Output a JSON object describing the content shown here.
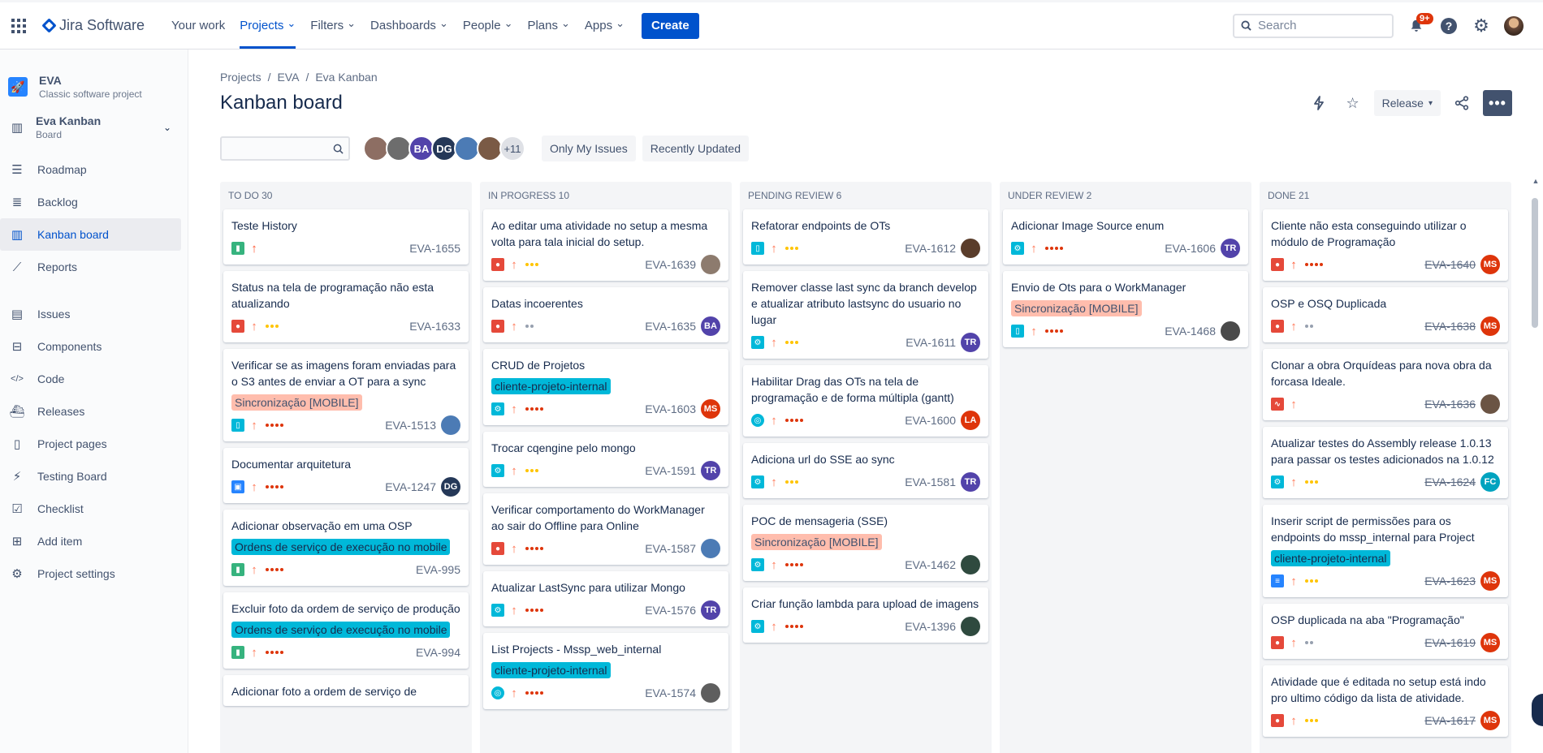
{
  "topnav": {
    "logo": "Jira Software",
    "items": [
      {
        "label": "Your work",
        "chev": false,
        "active": false
      },
      {
        "label": "Projects",
        "chev": true,
        "active": true
      },
      {
        "label": "Filters",
        "chev": true,
        "active": false
      },
      {
        "label": "Dashboards",
        "chev": true,
        "active": false
      },
      {
        "label": "People",
        "chev": true,
        "active": false
      },
      {
        "label": "Plans",
        "chev": true,
        "active": false
      },
      {
        "label": "Apps",
        "chev": true,
        "active": false
      }
    ],
    "create": "Create",
    "search_placeholder": "Search",
    "notif_badge": "9+"
  },
  "sidebar": {
    "project_name": "EVA",
    "project_type": "Classic software project",
    "board_name": "Eva Kanban",
    "board_type": "Board",
    "items": [
      {
        "label": "Roadmap",
        "icon": "roadmap-icon",
        "glyph": "☰",
        "active": false,
        "sep_before": false
      },
      {
        "label": "Backlog",
        "icon": "backlog-icon",
        "glyph": "≣",
        "active": false,
        "sep_before": false
      },
      {
        "label": "Kanban board",
        "icon": "board-icon",
        "glyph": "▥",
        "active": true,
        "sep_before": false
      },
      {
        "label": "Reports",
        "icon": "reports-icon",
        "glyph": "⟋",
        "active": false,
        "sep_before": false
      },
      {
        "label": "Issues",
        "icon": "issues-icon",
        "glyph": "▤",
        "active": false,
        "sep_before": true
      },
      {
        "label": "Components",
        "icon": "components-icon",
        "glyph": "⊟",
        "active": false,
        "sep_before": false
      },
      {
        "label": "Code",
        "icon": "code-icon",
        "glyph": "</>",
        "active": false,
        "sep_before": false
      },
      {
        "label": "Releases",
        "icon": "releases-icon",
        "glyph": "⛴",
        "active": false,
        "sep_before": false
      },
      {
        "label": "Project pages",
        "icon": "pages-icon",
        "glyph": "▯",
        "active": false,
        "sep_before": false
      },
      {
        "label": "Testing Board",
        "icon": "lightning-icon",
        "glyph": "⚡",
        "active": false,
        "sep_before": false
      },
      {
        "label": "Checklist",
        "icon": "checklist-icon",
        "glyph": "☑",
        "active": false,
        "sep_before": false
      },
      {
        "label": "Add item",
        "icon": "add-item-icon",
        "glyph": "⊞",
        "active": false,
        "sep_before": false
      },
      {
        "label": "Project settings",
        "icon": "settings-icon",
        "glyph": "⚙",
        "active": false,
        "sep_before": false
      }
    ]
  },
  "main": {
    "breadcrumbs": [
      "Projects",
      "EVA",
      "Eva Kanban"
    ],
    "title": "Kanban board",
    "release": "Release",
    "filters": {
      "only_my_issues": "Only My Issues",
      "recently_updated": "Recently Updated",
      "more_users": "+11",
      "avatars": [
        {
          "initials": "",
          "color": "#8d6e63"
        },
        {
          "initials": "",
          "color": "#6d6d6d"
        },
        {
          "initials": "BA",
          "color": "#5243aa"
        },
        {
          "initials": "DG",
          "color": "#253858"
        },
        {
          "initials": "",
          "color": "#4c7bb5"
        },
        {
          "initials": "",
          "color": "#7a5a45"
        }
      ]
    }
  },
  "columns": [
    {
      "name": "TO DO 30",
      "cards": [
        {
          "title": "Teste History",
          "label": "",
          "label_kind": "",
          "type": "story",
          "prio": "high",
          "dots": 0,
          "key": "EVA-1655",
          "avatar": "",
          "avatar_color": "",
          "done": false
        },
        {
          "title": "Status na tela de programação não esta atualizando",
          "label": "",
          "label_kind": "",
          "type": "bug",
          "prio": "med",
          "dots": 3,
          "dot_color": "#ffc400",
          "key": "EVA-1633",
          "avatar": "",
          "avatar_color": "",
          "done": false
        },
        {
          "title": "Verificar se as imagens foram enviadas para o S3 antes de enviar a OT para a sync",
          "label": "Sincronização [MOBILE]",
          "label_kind": "sync",
          "type": "mobile",
          "prio": "med",
          "dots": 4,
          "dot_color": "#de350b",
          "key": "EVA-1513",
          "avatar": " ",
          "avatar_color": "#4c7bb5",
          "done": false
        },
        {
          "title": "Documentar arquitetura",
          "label": "",
          "label_kind": "",
          "type": "doc",
          "prio": "med",
          "dots": 4,
          "dot_color": "#de350b",
          "key": "EVA-1247",
          "avatar": "DG",
          "avatar_color": "#253858",
          "done": false
        },
        {
          "title": "Adicionar observação em uma OSP",
          "label": "Ordens de serviço de execução no mobile",
          "label_kind": "ordens",
          "type": "story",
          "prio": "med",
          "dots": 4,
          "dot_color": "#de350b",
          "key": "EVA-995",
          "avatar": "",
          "avatar_color": "",
          "done": false
        },
        {
          "title": "Excluir foto da ordem de serviço de produção",
          "label": "Ordens de serviço de execução no mobile",
          "label_kind": "ordens",
          "type": "story",
          "prio": "med",
          "dots": 4,
          "dot_color": "#de350b",
          "key": "EVA-994",
          "avatar": "",
          "avatar_color": "",
          "done": false
        },
        {
          "title": "Adicionar foto a ordem de serviço de",
          "label": "",
          "label_kind": "",
          "type": "story",
          "prio": "med",
          "dots": 0,
          "key": "",
          "avatar": "",
          "avatar_color": "",
          "done": false
        }
      ]
    },
    {
      "name": "IN PROGRESS 10",
      "cards": [
        {
          "title": "Ao editar uma atividade no setup a mesma volta para tala inicial do setup.",
          "label": "",
          "label_kind": "",
          "type": "bug",
          "prio": "med",
          "dots": 3,
          "dot_color": "#ffc400",
          "key": "EVA-1639",
          "avatar": " ",
          "avatar_color": "#8d7b6e",
          "done": false
        },
        {
          "title": "Datas incoerentes",
          "label": "",
          "label_kind": "",
          "type": "bug",
          "prio": "med",
          "dots": 2,
          "dot_color": "#97a0af",
          "key": "EVA-1635",
          "avatar": "BA",
          "avatar_color": "#5243aa",
          "done": false
        },
        {
          "title": "CRUD de Projetos",
          "label": "cliente-projeto-internal",
          "label_kind": "cliente",
          "type": "tech",
          "prio": "med",
          "dots": 4,
          "dot_color": "#de350b",
          "key": "EVA-1603",
          "avatar": "MS",
          "avatar_color": "#de350b",
          "done": false
        },
        {
          "title": "Trocar cqengine pelo mongo",
          "label": "",
          "label_kind": "",
          "type": "tech",
          "prio": "med",
          "dots": 3,
          "dot_color": "#ffc400",
          "key": "EVA-1591",
          "avatar": "TR",
          "avatar_color": "#5243aa",
          "done": false
        },
        {
          "title": "Verificar comportamento do WorkManager ao sair do Offline para Online",
          "label": "",
          "label_kind": "",
          "type": "bug",
          "prio": "med",
          "dots": 4,
          "dot_color": "#de350b",
          "key": "EVA-1587",
          "avatar": " ",
          "avatar_color": "#4c7bb5",
          "done": false
        },
        {
          "title": "Atualizar LastSync para utilizar Mongo",
          "label": "",
          "label_kind": "",
          "type": "tech",
          "prio": "med",
          "dots": 4,
          "dot_color": "#de350b",
          "key": "EVA-1576",
          "avatar": "TR",
          "avatar_color": "#5243aa",
          "done": false
        },
        {
          "title": "List Projects - Mssp_web_internal",
          "label": "cliente-projeto-internal",
          "label_kind": "cliente",
          "type": "web",
          "prio": "med",
          "dots": 4,
          "dot_color": "#de350b",
          "key": "EVA-1574",
          "avatar": " ",
          "avatar_color": "#5e5e5e",
          "done": false
        }
      ]
    },
    {
      "name": "PENDING REVIEW 6",
      "cards": [
        {
          "title": "Refatorar endpoints de OTs",
          "label": "",
          "label_kind": "",
          "type": "mobile",
          "prio": "med",
          "dots": 3,
          "dot_color": "#ffc400",
          "key": "EVA-1612",
          "avatar": " ",
          "avatar_color": "#5a3d2b",
          "done": false
        },
        {
          "title": "Remover classe last sync da branch develop e atualizar atributo lastsync do usuario no lugar",
          "label": "",
          "label_kind": "",
          "type": "tech",
          "prio": "med",
          "dots": 3,
          "dot_color": "#ffc400",
          "key": "EVA-1611",
          "avatar": "TR",
          "avatar_color": "#5243aa",
          "done": false
        },
        {
          "title": "Habilitar Drag das OTs na tela de programação e de forma múltipla (gantt)",
          "label": "",
          "label_kind": "",
          "type": "web",
          "prio": "med",
          "dots": 4,
          "dot_color": "#de350b",
          "key": "EVA-1600",
          "avatar": "LA",
          "avatar_color": "#de350b",
          "done": false
        },
        {
          "title": "Adiciona url do SSE ao sync",
          "label": "",
          "label_kind": "",
          "type": "tech",
          "prio": "med",
          "dots": 3,
          "dot_color": "#ffc400",
          "key": "EVA-1581",
          "avatar": "TR",
          "avatar_color": "#5243aa",
          "done": false
        },
        {
          "title": "POC de mensageria (SSE)",
          "label": "Sincronização [MOBILE]",
          "label_kind": "sync",
          "type": "tech",
          "prio": "med",
          "dots": 4,
          "dot_color": "#de350b",
          "key": "EVA-1462",
          "avatar": " ",
          "avatar_color": "#2f4a3f",
          "done": false
        },
        {
          "title": "Criar função lambda para upload de imagens",
          "label": "",
          "label_kind": "",
          "type": "tech",
          "prio": "med",
          "dots": 4,
          "dot_color": "#de350b",
          "key": "EVA-1396",
          "avatar": " ",
          "avatar_color": "#2f4a3f",
          "done": false
        }
      ]
    },
    {
      "name": "UNDER REVIEW 2",
      "cards": [
        {
          "title": "Adicionar Image Source enum",
          "label": "",
          "label_kind": "",
          "type": "tech",
          "prio": "med",
          "dots": 4,
          "dot_color": "#de350b",
          "key": "EVA-1606",
          "avatar": "TR",
          "avatar_color": "#5243aa",
          "done": false
        },
        {
          "title": "Envio de Ots para o WorkManager",
          "label": "Sincronização [MOBILE]",
          "label_kind": "sync",
          "type": "mobile",
          "prio": "med",
          "dots": 4,
          "dot_color": "#de350b",
          "key": "EVA-1468",
          "avatar": " ",
          "avatar_color": "#4a4a4a",
          "done": false
        }
      ]
    },
    {
      "name": "DONE 21",
      "cards": [
        {
          "title": "Cliente não esta conseguindo utilizar o módulo de Programação",
          "label": "",
          "label_kind": "",
          "type": "bug",
          "prio": "high",
          "dots": 4,
          "dot_color": "#de350b",
          "key": "EVA-1640",
          "avatar": "MS",
          "avatar_color": "#de350b",
          "done": true
        },
        {
          "title": "OSP e OSQ Duplicada",
          "label": "",
          "label_kind": "",
          "type": "bug",
          "prio": "med",
          "dots": 2,
          "dot_color": "#97a0af",
          "key": "EVA-1638",
          "avatar": "MS",
          "avatar_color": "#de350b",
          "done": true
        },
        {
          "title": "Clonar a obra Orquídeas para nova obra da forcasa Ideale.",
          "label": "",
          "label_kind": "",
          "type": "pulse",
          "prio": "med",
          "dots": 0,
          "key": "EVA-1636",
          "avatar": " ",
          "avatar_color": "#6b5444",
          "done": true
        },
        {
          "title": "Atualizar testes do Assembly release 1.0.13 para passar os testes adicionados na 1.0.12",
          "label": "",
          "label_kind": "",
          "type": "tech",
          "prio": "med",
          "dots": 3,
          "dot_color": "#ffc400",
          "key": "EVA-1624",
          "avatar": "FC",
          "avatar_color": "#00a3bf",
          "done": true
        },
        {
          "title": "Inserir script de permissões para os endpoints do mssp_internal para Project",
          "label": "cliente-projeto-internal",
          "label_kind": "cliente",
          "type": "db",
          "prio": "med",
          "dots": 3,
          "dot_color": "#ffc400",
          "key": "EVA-1623",
          "avatar": "MS",
          "avatar_color": "#de350b",
          "done": true
        },
        {
          "title": "OSP duplicada na aba \"Programação\"",
          "label": "",
          "label_kind": "",
          "type": "bug",
          "prio": "med",
          "dots": 2,
          "dot_color": "#97a0af",
          "key": "EVA-1619",
          "avatar": "MS",
          "avatar_color": "#de350b",
          "done": true
        },
        {
          "title": "Atividade que é editada no setup está indo pro ultimo código da lista de atividade.",
          "label": "",
          "label_kind": "",
          "type": "bug",
          "prio": "med",
          "dots": 3,
          "dot_color": "#ffc400",
          "key": "EVA-1617",
          "avatar": "MS",
          "avatar_color": "#de350b",
          "done": true
        }
      ]
    }
  ]
}
